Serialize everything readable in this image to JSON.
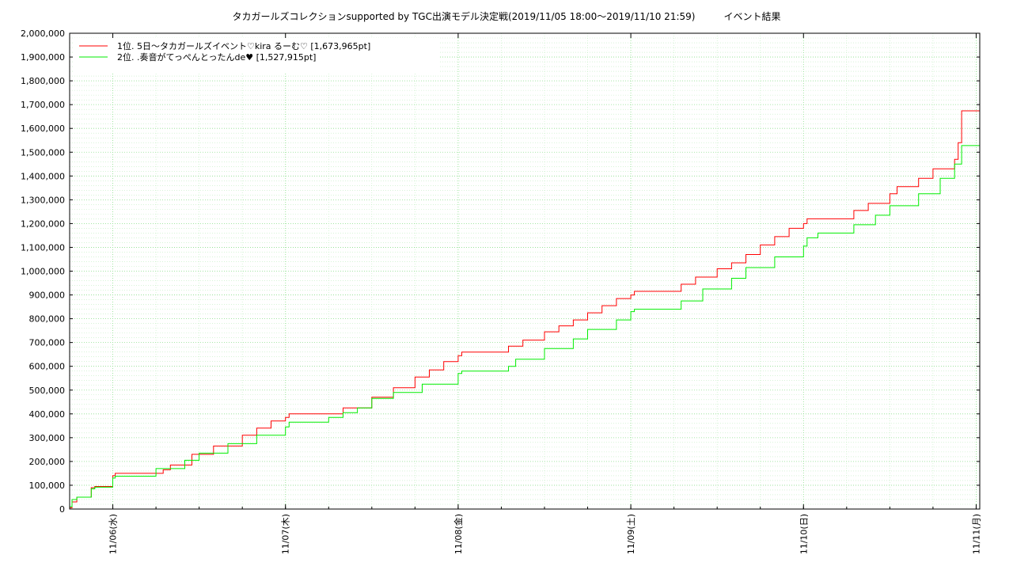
{
  "chart_data": {
    "type": "line",
    "title": "タカガールズコレクションsupported by TGC出演モデル決定戦(2019/11/05 18:00〜2019/11/10 21:59)　　　イベント結果",
    "xlabel": "",
    "ylabel": "",
    "x_range": [
      "2019-11-05 18:00",
      "2019-11-11 00:30"
    ],
    "ylim": [
      0,
      2000000
    ],
    "y_ticks": [
      0,
      100000,
      200000,
      300000,
      400000,
      500000,
      600000,
      700000,
      800000,
      900000,
      1000000,
      1100000,
      1200000,
      1300000,
      1400000,
      1500000,
      1600000,
      1700000,
      1800000,
      1900000,
      2000000
    ],
    "y_tick_labels": [
      "0",
      "100,000",
      "200,000",
      "300,000",
      "400,000",
      "500,000",
      "600,000",
      "700,000",
      "800,000",
      "900,000",
      "1,000,000",
      "1,100,000",
      "1,200,000",
      "1,300,000",
      "1,400,000",
      "1,500,000",
      "1,600,000",
      "1,700,000",
      "1,800,000",
      "1,900,000",
      "2,000,000"
    ],
    "x_ticks": [
      "2019-11-06 00:00",
      "2019-11-07 00:00",
      "2019-11-08 00:00",
      "2019-11-09 00:00",
      "2019-11-10 00:00",
      "2019-11-11 00:00"
    ],
    "x_tick_labels": [
      "11/06(水)",
      "11/07(木)",
      "11/08(金)",
      "11/09(土)",
      "11/10(日)",
      "11/11(月)"
    ],
    "grid": true,
    "legend_position": "top-left",
    "series": [
      {
        "name": "1位. 5日〜タカガールズイベント♡kira るーむ♡ [1,673,965pt]",
        "color": "#ff0000",
        "step": true,
        "points": [
          [
            "2019-11-05 18:00",
            5000
          ],
          [
            "2019-11-05 18:20",
            30000
          ],
          [
            "2019-11-05 19:00",
            50000
          ],
          [
            "2019-11-05 21:00",
            90000
          ],
          [
            "2019-11-05 21:30",
            95000
          ],
          [
            "2019-11-06 00:00",
            140000
          ],
          [
            "2019-11-06 00:20",
            150000
          ],
          [
            "2019-11-06 07:00",
            165000
          ],
          [
            "2019-11-06 08:00",
            185000
          ],
          [
            "2019-11-06 11:00",
            230000
          ],
          [
            "2019-11-06 14:00",
            265000
          ],
          [
            "2019-11-06 18:00",
            310000
          ],
          [
            "2019-11-06 20:00",
            340000
          ],
          [
            "2019-11-06 22:00",
            370000
          ],
          [
            "2019-11-07 00:00",
            385000
          ],
          [
            "2019-11-07 00:30",
            400000
          ],
          [
            "2019-11-07 08:00",
            425000
          ],
          [
            "2019-11-07 12:00",
            470000
          ],
          [
            "2019-11-07 15:00",
            510000
          ],
          [
            "2019-11-07 18:00",
            555000
          ],
          [
            "2019-11-07 20:00",
            585000
          ],
          [
            "2019-11-07 22:00",
            620000
          ],
          [
            "2019-11-08 00:00",
            645000
          ],
          [
            "2019-11-08 00:30",
            660000
          ],
          [
            "2019-11-08 07:00",
            685000
          ],
          [
            "2019-11-08 09:00",
            710000
          ],
          [
            "2019-11-08 12:00",
            745000
          ],
          [
            "2019-11-08 14:00",
            770000
          ],
          [
            "2019-11-08 16:00",
            795000
          ],
          [
            "2019-11-08 18:00",
            825000
          ],
          [
            "2019-11-08 20:00",
            855000
          ],
          [
            "2019-11-08 22:00",
            885000
          ],
          [
            "2019-11-09 00:00",
            900000
          ],
          [
            "2019-11-09 00:30",
            915000
          ],
          [
            "2019-11-09 07:00",
            945000
          ],
          [
            "2019-11-09 09:00",
            975000
          ],
          [
            "2019-11-09 12:00",
            1010000
          ],
          [
            "2019-11-09 14:00",
            1035000
          ],
          [
            "2019-11-09 16:00",
            1070000
          ],
          [
            "2019-11-09 18:00",
            1110000
          ],
          [
            "2019-11-09 20:00",
            1145000
          ],
          [
            "2019-11-09 22:00",
            1180000
          ],
          [
            "2019-11-10 00:00",
            1200000
          ],
          [
            "2019-11-10 00:30",
            1220000
          ],
          [
            "2019-11-10 07:00",
            1255000
          ],
          [
            "2019-11-10 09:00",
            1285000
          ],
          [
            "2019-11-10 12:00",
            1325000
          ],
          [
            "2019-11-10 13:00",
            1355000
          ],
          [
            "2019-11-10 16:00",
            1390000
          ],
          [
            "2019-11-10 18:00",
            1430000
          ],
          [
            "2019-11-10 21:00",
            1470000
          ],
          [
            "2019-11-10 21:30",
            1540000
          ],
          [
            "2019-11-10 21:59",
            1673965
          ],
          [
            "2019-11-11 00:30",
            1673965
          ]
        ]
      },
      {
        "name": "2位. .奏音がてっぺんとったんde♥ [1,527,915pt]",
        "color": "#00ee00",
        "step": true,
        "points": [
          [
            "2019-11-05 18:00",
            10000
          ],
          [
            "2019-11-05 18:20",
            40000
          ],
          [
            "2019-11-05 19:00",
            50000
          ],
          [
            "2019-11-05 21:00",
            85000
          ],
          [
            "2019-11-05 21:30",
            92000
          ],
          [
            "2019-11-06 00:00",
            130000
          ],
          [
            "2019-11-06 00:20",
            138000
          ],
          [
            "2019-11-06 06:00",
            170000
          ],
          [
            "2019-11-06 10:00",
            205000
          ],
          [
            "2019-11-06 12:00",
            235000
          ],
          [
            "2019-11-06 16:00",
            275000
          ],
          [
            "2019-11-06 20:00",
            310000
          ],
          [
            "2019-11-07 00:00",
            345000
          ],
          [
            "2019-11-07 00:30",
            365000
          ],
          [
            "2019-11-07 06:00",
            385000
          ],
          [
            "2019-11-07 08:00",
            405000
          ],
          [
            "2019-11-07 10:00",
            425000
          ],
          [
            "2019-11-07 12:00",
            465000
          ],
          [
            "2019-11-07 15:00",
            490000
          ],
          [
            "2019-11-07 19:00",
            525000
          ],
          [
            "2019-11-08 00:00",
            570000
          ],
          [
            "2019-11-08 00:30",
            580000
          ],
          [
            "2019-11-08 07:00",
            600000
          ],
          [
            "2019-11-08 08:00",
            630000
          ],
          [
            "2019-11-08 12:00",
            675000
          ],
          [
            "2019-11-08 16:00",
            715000
          ],
          [
            "2019-11-08 18:00",
            755000
          ],
          [
            "2019-11-08 22:00",
            795000
          ],
          [
            "2019-11-09 00:00",
            830000
          ],
          [
            "2019-11-09 00:30",
            840000
          ],
          [
            "2019-11-09 07:00",
            875000
          ],
          [
            "2019-11-09 10:00",
            925000
          ],
          [
            "2019-11-09 14:00",
            970000
          ],
          [
            "2019-11-09 16:00",
            1015000
          ],
          [
            "2019-11-09 20:00",
            1060000
          ],
          [
            "2019-11-10 00:00",
            1105000
          ],
          [
            "2019-11-10 00:30",
            1140000
          ],
          [
            "2019-11-10 02:00",
            1160000
          ],
          [
            "2019-11-10 07:00",
            1195000
          ],
          [
            "2019-11-10 10:00",
            1235000
          ],
          [
            "2019-11-10 12:00",
            1275000
          ],
          [
            "2019-11-10 16:00",
            1325000
          ],
          [
            "2019-11-10 19:00",
            1390000
          ],
          [
            "2019-11-10 21:00",
            1450000
          ],
          [
            "2019-11-10 21:59",
            1527915
          ],
          [
            "2019-11-11 00:30",
            1527915
          ]
        ]
      }
    ]
  }
}
